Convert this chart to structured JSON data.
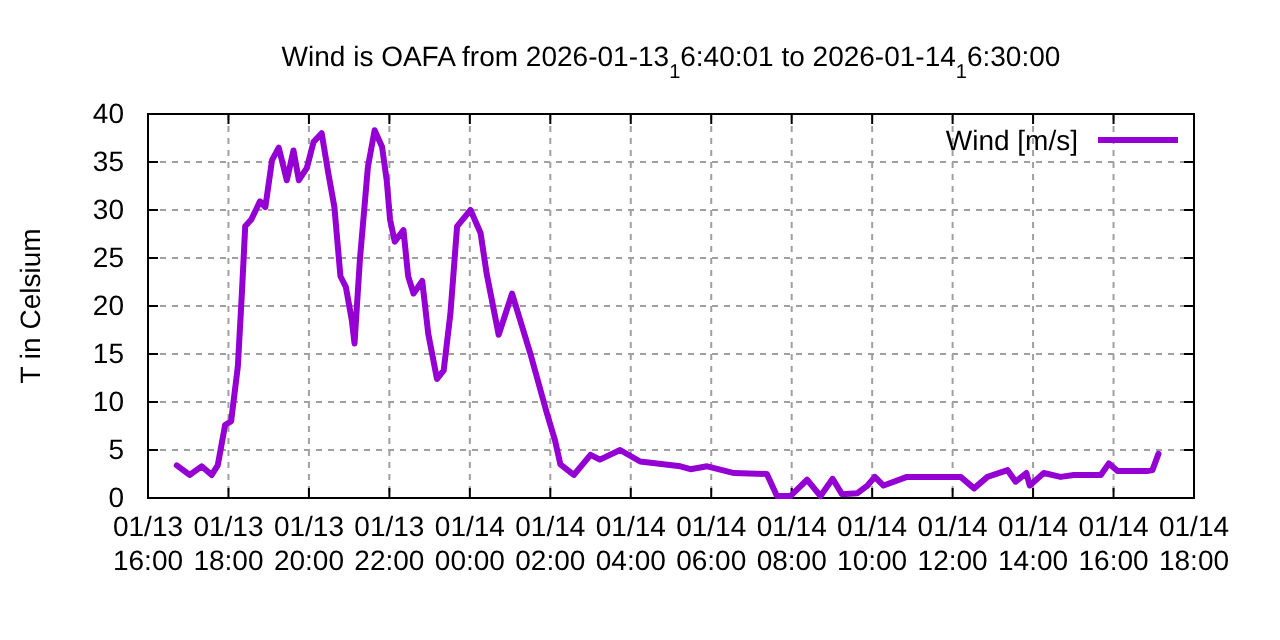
{
  "chart_data": {
    "type": "line",
    "title": "Wind is OAFA from 2026-01-13$_{1}$6:40:01 to 2026-01-14$_{1}$6:30:00",
    "ylabel": "T in Celsium",
    "xlim": [
      "2026-01-13T16:00",
      "2026-01-14T18:00"
    ],
    "xticks": [
      {
        "value": "2026-01-13T16:00",
        "label": "01/13\n16:00"
      },
      {
        "value": "2026-01-13T18:00",
        "label": "01/13\n18:00"
      },
      {
        "value": "2026-01-13T20:00",
        "label": "01/13\n20:00"
      },
      {
        "value": "2026-01-13T22:00",
        "label": "01/13\n22:00"
      },
      {
        "value": "2026-01-14T00:00",
        "label": "01/14\n00:00"
      },
      {
        "value": "2026-01-14T02:00",
        "label": "01/14\n02:00"
      },
      {
        "value": "2026-01-14T04:00",
        "label": "01/14\n04:00"
      },
      {
        "value": "2026-01-14T06:00",
        "label": "01/14\n06:00"
      },
      {
        "value": "2026-01-14T08:00",
        "label": "01/14\n08:00"
      },
      {
        "value": "2026-01-14T10:00",
        "label": "01/14\n10:00"
      },
      {
        "value": "2026-01-14T12:00",
        "label": "01/14\n12:00"
      },
      {
        "value": "2026-01-14T14:00",
        "label": "01/14\n14:00"
      },
      {
        "value": "2026-01-14T16:00",
        "label": "01/14\n16:00"
      },
      {
        "value": "2026-01-14T18:00",
        "label": "01/14\n18:00"
      }
    ],
    "ylim": [
      0,
      40
    ],
    "yticks": [
      0,
      5,
      10,
      15,
      20,
      25,
      30,
      35,
      40
    ],
    "grid": true,
    "legend": "top right",
    "line_style": "solid",
    "marker": "none",
    "x": [
      "2026-01-13T16:43",
      "2026-01-13T17:02",
      "2026-01-13T17:20",
      "2026-01-13T17:35",
      "2026-01-13T17:44",
      "2026-01-13T17:55",
      "2026-01-13T18:04",
      "2026-01-13T18:14",
      "2026-01-13T18:20",
      "2026-01-13T18:25",
      "2026-01-13T18:34",
      "2026-01-13T18:47",
      "2026-01-13T18:55",
      "2026-01-13T19:05",
      "2026-01-13T19:15",
      "2026-01-13T19:27",
      "2026-01-13T19:37",
      "2026-01-13T19:45",
      "2026-01-13T19:57",
      "2026-01-13T20:07",
      "2026-01-13T20:19",
      "2026-01-13T20:29",
      "2026-01-13T20:38",
      "2026-01-13T20:47",
      "2026-01-13T20:55",
      "2026-01-13T21:04",
      "2026-01-13T21:08",
      "2026-01-13T21:16",
      "2026-01-13T21:28",
      "2026-01-13T21:38",
      "2026-01-13T21:49",
      "2026-01-13T21:56",
      "2026-01-13T22:01",
      "2026-01-13T22:08",
      "2026-01-13T22:21",
      "2026-01-13T22:28",
      "2026-01-13T22:36",
      "2026-01-13T22:49",
      "2026-01-13T22:58",
      "2026-01-13T23:11",
      "2026-01-13T23:21",
      "2026-01-13T23:31",
      "2026-01-13T23:41",
      "2026-01-14T00:01",
      "2026-01-14T00:16",
      "2026-01-14T00:25",
      "2026-01-14T00:43",
      "2026-01-14T01:03",
      "2026-01-14T01:30",
      "2026-01-14T01:55",
      "2026-01-14T02:07",
      "2026-01-14T02:15",
      "2026-01-14T02:35",
      "2026-01-14T03:00",
      "2026-01-14T03:14",
      "2026-01-14T03:44",
      "2026-01-14T04:14",
      "2026-01-14T05:14",
      "2026-01-14T05:29",
      "2026-01-14T05:54",
      "2026-01-14T06:34",
      "2026-01-14T07:23",
      "2026-01-14T07:38",
      "2026-01-14T07:58",
      "2026-01-14T08:23",
      "2026-01-14T08:43",
      "2026-01-14T09:01",
      "2026-01-14T09:15",
      "2026-01-14T09:38",
      "2026-01-14T09:53",
      "2026-01-14T10:04",
      "2026-01-14T10:17",
      "2026-01-14T10:52",
      "2026-01-14T12:12",
      "2026-01-14T12:32",
      "2026-01-14T12:52",
      "2026-01-14T13:22",
      "2026-01-14T13:34",
      "2026-01-14T13:50",
      "2026-01-14T13:55",
      "2026-01-14T14:16",
      "2026-01-14T14:41",
      "2026-01-14T15:01",
      "2026-01-14T15:41",
      "2026-01-14T15:53",
      "2026-01-14T16:06",
      "2026-01-14T16:50",
      "2026-01-14T16:58",
      "2026-01-14T17:07"
    ],
    "series": [
      {
        "name": "Wind [m/s]",
        "color": "#9400d3",
        "values": [
          3.4,
          2.4,
          3.3,
          2.4,
          3.4,
          7.6,
          8.0,
          13.7,
          21.3,
          28.3,
          29.0,
          30.9,
          30.3,
          35.2,
          36.5,
          33.1,
          36.2,
          33.1,
          34.4,
          37.1,
          38.0,
          33.8,
          30.3,
          23.1,
          22.0,
          18.5,
          16.1,
          24.8,
          34.5,
          38.3,
          36.6,
          33.1,
          29.0,
          26.7,
          27.9,
          23.1,
          21.3,
          22.6,
          17.1,
          12.4,
          13.3,
          19.2,
          28.3,
          30.0,
          27.6,
          23.4,
          17.0,
          21.3,
          15.1,
          8.8,
          6.0,
          3.5,
          2.4,
          4.5,
          4.0,
          5.0,
          3.8,
          3.3,
          3.0,
          3.3,
          2.6,
          2.5,
          0.2,
          0.2,
          1.9,
          0.2,
          2.0,
          0.4,
          0.5,
          1.3,
          2.2,
          1.3,
          2.2,
          2.2,
          1.0,
          2.2,
          2.9,
          1.7,
          2.6,
          1.3,
          2.6,
          2.2,
          2.4,
          2.4,
          3.6,
          2.8,
          2.8,
          2.9,
          4.6
        ]
      }
    ]
  }
}
